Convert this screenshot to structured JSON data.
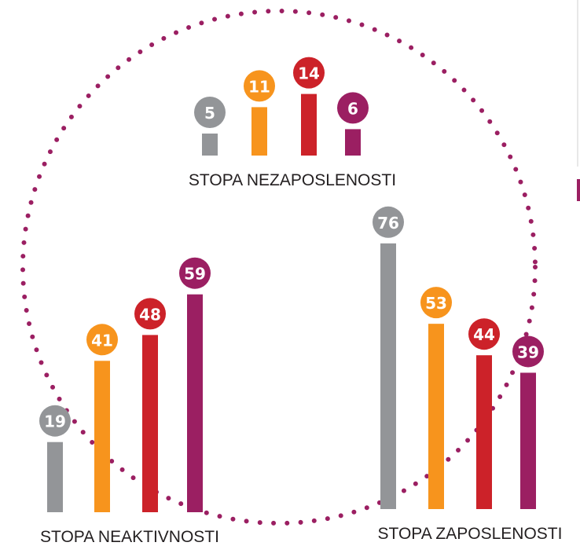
{
  "chart_data": [
    {
      "type": "bar",
      "title": "STOPA NEZAPOSLENOSTI",
      "values": [
        5,
        11,
        14,
        6
      ],
      "colors": [
        "#939598",
        "#f7941d",
        "#cc2229",
        "#9b1f62"
      ]
    },
    {
      "type": "bar",
      "title": "STOPA NEAKTIVNOSTI",
      "values": [
        19,
        41,
        48,
        59
      ],
      "colors": [
        "#939598",
        "#f7941d",
        "#cc2229",
        "#9b1f62"
      ]
    },
    {
      "type": "bar",
      "title": "STOPA ZAPOSLENOSTI",
      "values": [
        76,
        53,
        44,
        39
      ],
      "colors": [
        "#939598",
        "#f7941d",
        "#cc2229",
        "#9b1f62"
      ]
    }
  ]
}
